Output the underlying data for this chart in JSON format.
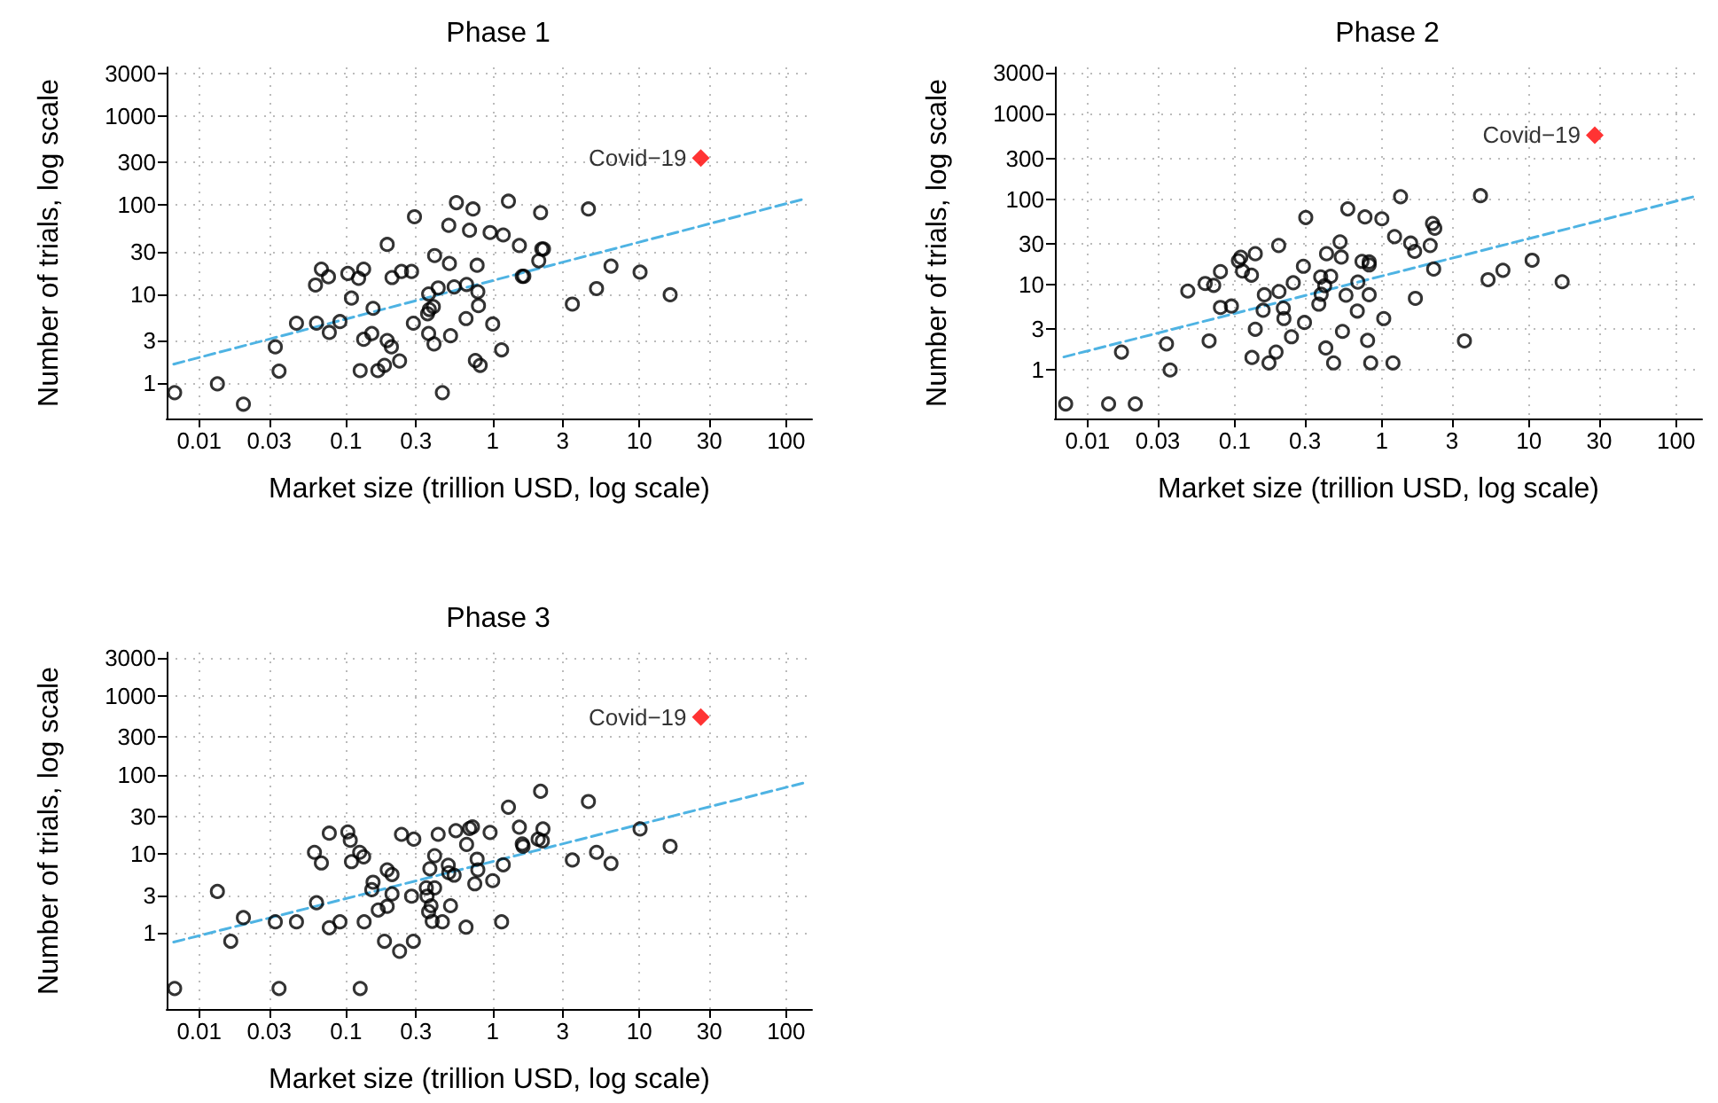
{
  "chart_data": [
    {
      "type": "scatter",
      "title": "Phase 1",
      "xlabel": "Market size (trillion USD, log scale)",
      "ylabel": "Number of trials, log scale",
      "log": "xy",
      "grid": true,
      "xlim": [
        0.006,
        150
      ],
      "ylim": [
        0.4,
        3500
      ],
      "xticks": [
        0.01,
        0.03,
        0.1,
        0.3,
        1,
        3,
        10,
        30,
        100
      ],
      "yticks": [
        1,
        3,
        10,
        30,
        100,
        300,
        1000,
        3000
      ],
      "series": [
        {
          "color": "#000000",
          "marker": "circle",
          "x": [
            0.0068,
            0.0133,
            0.02,
            0.033,
            0.035,
            0.046,
            0.063,
            0.062,
            0.068,
            0.076,
            0.077,
            0.091,
            0.103,
            0.122,
            0.132,
            0.109,
            0.125,
            0.132,
            0.15,
            0.153,
            0.165,
            0.183,
            0.191,
            0.191,
            0.204,
            0.206,
            0.232,
            0.239,
            0.28,
            0.288,
            0.293,
            0.366,
            0.366,
            0.36,
            0.37,
            0.394,
            0.398,
            0.402,
            0.425,
            0.454,
            0.502,
            0.507,
            0.516,
            0.546,
            0.566,
            0.658,
            0.664,
            0.695,
            0.734,
            0.762,
            0.783,
            0.792,
            0.8,
            0.822,
            0.96,
            1.0,
            1.15,
            1.18,
            1.28,
            1.52,
            1.59,
            1.63,
            2.06,
            2.12,
            2.16,
            2.22,
            3.49,
            4.49,
            5.1,
            6.4,
            10.1,
            16.2
          ],
          "values": [
            0.78,
            0.98,
            0.58,
            2.55,
            1.36,
            4.7,
            4.7,
            12.6,
            19,
            15.6,
            3.7,
            4.9,
            17,
            15,
            19,
            9.0,
            1.38,
            3.1,
            3.6,
            6.9,
            1.38,
            1.58,
            36,
            3.0,
            2.55,
            15.3,
            1.77,
            17.9,
            17.9,
            4.7,
            73.6,
            10,
            3.6,
            6.0,
            6.7,
            7.2,
            2.75,
            27,
            11.7,
            0.78,
            59,
            22,
            3.4,
            12,
            106,
            5.3,
            12.8,
            52,
            90,
            1.79,
            21,
            10.6,
            7.4,
            1.58,
            49,
            4.6,
            2.36,
            46,
            110,
            35,
            15.8,
            15.8,
            23.6,
            82,
            32,
            32,
            7.7,
            90,
            11.5,
            20.6,
            17.6,
            9.8
          ]
        },
        {
          "name": "Covid−19",
          "color": "#ff0000",
          "marker": "diamond",
          "x": [
            26.2
          ],
          "values": [
            336
          ]
        },
        {
          "type": "line",
          "color": "#4eb3e3",
          "line_style": "dashed",
          "x": [
            0.0067,
            136
          ],
          "values": [
            1.63,
            118
          ]
        }
      ]
    },
    {
      "type": "scatter",
      "title": "Phase 2",
      "xlabel": "Market size (trillion USD, log scale)",
      "ylabel": "Number of trials, log scale",
      "log": "xy",
      "grid": true,
      "xlim": [
        0.006,
        150
      ],
      "ylim": [
        0.27,
        3500
      ],
      "xticks": [
        0.01,
        0.03,
        0.1,
        0.3,
        1,
        3,
        10,
        30,
        100
      ],
      "yticks": [
        1,
        3,
        10,
        30,
        100,
        300,
        1000,
        3000
      ],
      "series": [
        {
          "color": "#000000",
          "marker": "circle",
          "x": [
            0.0071,
            0.0139,
            0.0211,
            0.017,
            0.0344,
            0.0364,
            0.048,
            0.063,
            0.072,
            0.08,
            0.08,
            0.095,
            0.067,
            0.106,
            0.11,
            0.113,
            0.13,
            0.138,
            0.138,
            0.131,
            0.159,
            0.156,
            0.171,
            0.191,
            0.199,
            0.2,
            0.214,
            0.216,
            0.243,
            0.25,
            0.293,
            0.298,
            0.304,
            0.373,
            0.387,
            0.384,
            0.409,
            0.416,
            0.421,
            0.449,
            0.47,
            0.52,
            0.53,
            0.54,
            0.571,
            0.587,
            0.681,
            0.687,
            0.733,
            0.768,
            0.8,
            0.82,
            0.82,
            0.82,
            0.84,
            1.0,
            1.03,
            1.19,
            1.22,
            1.34,
            1.57,
            1.67,
            1.69,
            2.13,
            2.21,
            2.29,
            2.25,
            3.64,
            4.68,
            5.27,
            6.65,
            10.5,
            16.8
          ],
          "values": [
            0.4,
            0.4,
            0.4,
            1.62,
            2.02,
            1.0,
            8.4,
            10.3,
            9.8,
            14.2,
            5.4,
            5.6,
            2.19,
            19,
            20.9,
            14.4,
            12.9,
            23,
            3.0,
            1.4,
            7.6,
            5.0,
            1.21,
            1.62,
            28.7,
            8.3,
            5.3,
            4.0,
            2.45,
            10.5,
            16.4,
            3.6,
            61,
            5.9,
            7.7,
            12.3,
            9.7,
            1.81,
            23,
            12.5,
            1.21,
            31.6,
            21,
            2.83,
            7.5,
            77,
            4.9,
            10.7,
            18.7,
            62,
            2.22,
            18.4,
            7.6,
            17,
            1.21,
            59,
            4.0,
            1.21,
            36.5,
            107,
            30.6,
            24.5,
            6.9,
            28.7,
            52,
            45.7,
            15.2,
            2.19,
            110,
            11.4,
            14.7,
            19.3,
            10.8
          ]
        },
        {
          "name": "Covid−19",
          "color": "#ff0000",
          "marker": "diamond",
          "x": [
            28
          ],
          "values": [
            562
          ]
        },
        {
          "type": "line",
          "color": "#4eb3e3",
          "line_style": "dashed",
          "x": [
            0.0069,
            140
          ],
          "values": [
            1.42,
            110
          ]
        }
      ]
    },
    {
      "type": "scatter",
      "title": "Phase 3",
      "xlabel": "Market size (trillion USD, log scale)",
      "ylabel": "Number of trials, log scale",
      "log": "xy",
      "grid": true,
      "xlim": [
        0.006,
        150
      ],
      "ylim": [
        0.11,
        3500
      ],
      "xticks": [
        0.01,
        0.03,
        0.1,
        0.3,
        1,
        3,
        10,
        30,
        100
      ],
      "yticks": [
        1,
        3,
        10,
        30,
        100,
        300,
        1000,
        3000
      ],
      "series": [
        {
          "color": "#000000",
          "marker": "circle",
          "x": [
            0.0068,
            0.0133,
            0.0164,
            0.02,
            0.033,
            0.035,
            0.046,
            0.063,
            0.061,
            0.068,
            0.077,
            0.077,
            0.091,
            0.103,
            0.107,
            0.109,
            0.124,
            0.132,
            0.125,
            0.133,
            0.153,
            0.15,
            0.166,
            0.183,
            0.191,
            0.191,
            0.206,
            0.206,
            0.232,
            0.239,
            0.28,
            0.288,
            0.29,
            0.353,
            0.357,
            0.366,
            0.373,
            0.38,
            0.387,
            0.402,
            0.402,
            0.425,
            0.454,
            0.498,
            0.502,
            0.516,
            0.546,
            0.561,
            0.658,
            0.664,
            0.695,
            0.728,
            0.755,
            0.783,
            0.792,
            0.96,
            1.0,
            1.15,
            1.18,
            1.28,
            1.52,
            1.59,
            1.61,
            2.04,
            2.12,
            2.2,
            2.18,
            3.49,
            4.49,
            5.1,
            6.4,
            10.1,
            16.2
          ],
          "values": [
            0.2,
            3.36,
            0.79,
            1.57,
            1.39,
            0.2,
            1.39,
            2.42,
            10.5,
            7.7,
            18.3,
            1.17,
            1.39,
            19,
            14.9,
            8.0,
            10.5,
            9.2,
            0.2,
            1.39,
            4.4,
            3.54,
            1.96,
            0.79,
            6.3,
            2.18,
            5.5,
            3.13,
            0.59,
            17.7,
            2.93,
            0.79,
            15.4,
            3.73,
            2.93,
            1.87,
            6.5,
            2.22,
            1.41,
            9.5,
            3.73,
            17.7,
            1.39,
            7.2,
            5.8,
            2.22,
            5.4,
            19.7,
            1.19,
            13.2,
            21,
            22,
            4.2,
            8.6,
            6.3,
            18.7,
            4.6,
            1.39,
            7.3,
            39,
            21.8,
            13.4,
            12.5,
            15.4,
            62,
            20.7,
            14.6,
            8.4,
            46,
            10.5,
            7.6,
            20.7,
            12.5
          ]
        },
        {
          "name": "Covid−19",
          "color": "#ff0000",
          "marker": "diamond",
          "x": [
            26.2
          ],
          "values": [
            536
          ]
        },
        {
          "type": "line",
          "color": "#4eb3e3",
          "line_style": "dashed",
          "x": [
            0.0067,
            139
          ],
          "values": [
            0.77,
            81
          ]
        }
      ]
    }
  ]
}
